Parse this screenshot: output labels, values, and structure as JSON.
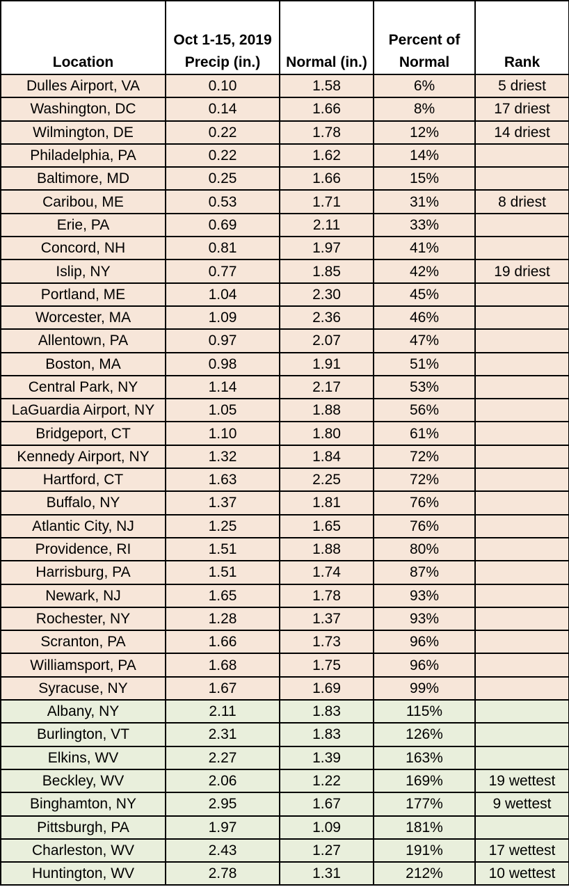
{
  "headers": [
    {
      "lines": [
        "Location"
      ]
    },
    {
      "lines": [
        "Oct 1-15, 2019",
        "Precip (in.)"
      ]
    },
    {
      "lines": [
        "Normal (in.)"
      ]
    },
    {
      "lines": [
        "Percent of",
        "Normal"
      ]
    },
    {
      "lines": [
        "Rank"
      ]
    }
  ],
  "colors": {
    "dry": "#f7e6d9",
    "wet": "#e9efdc",
    "border": "#000000"
  },
  "rows": [
    {
      "location": "Dulles Airport, VA",
      "precip": "0.10",
      "normal": "1.58",
      "percent": "6%",
      "rank": "5 driest",
      "group": "dry"
    },
    {
      "location": "Washington, DC",
      "precip": "0.14",
      "normal": "1.66",
      "percent": "8%",
      "rank": "17 driest",
      "group": "dry"
    },
    {
      "location": "Wilmington, DE",
      "precip": "0.22",
      "normal": "1.78",
      "percent": "12%",
      "rank": "14 driest",
      "group": "dry"
    },
    {
      "location": "Philadelphia, PA",
      "precip": "0.22",
      "normal": "1.62",
      "percent": "14%",
      "rank": "",
      "group": "dry"
    },
    {
      "location": "Baltimore, MD",
      "precip": "0.25",
      "normal": "1.66",
      "percent": "15%",
      "rank": "",
      "group": "dry"
    },
    {
      "location": "Caribou, ME",
      "precip": "0.53",
      "normal": "1.71",
      "percent": "31%",
      "rank": "8 driest",
      "group": "dry"
    },
    {
      "location": "Erie, PA",
      "precip": "0.69",
      "normal": "2.11",
      "percent": "33%",
      "rank": "",
      "group": "dry"
    },
    {
      "location": "Concord, NH",
      "precip": "0.81",
      "normal": "1.97",
      "percent": "41%",
      "rank": "",
      "group": "dry"
    },
    {
      "location": "Islip, NY",
      "precip": "0.77",
      "normal": "1.85",
      "percent": "42%",
      "rank": "19 driest",
      "group": "dry"
    },
    {
      "location": "Portland, ME",
      "precip": "1.04",
      "normal": "2.30",
      "percent": "45%",
      "rank": "",
      "group": "dry"
    },
    {
      "location": "Worcester, MA",
      "precip": "1.09",
      "normal": "2.36",
      "percent": "46%",
      "rank": "",
      "group": "dry"
    },
    {
      "location": "Allentown, PA",
      "precip": "0.97",
      "normal": "2.07",
      "percent": "47%",
      "rank": "",
      "group": "dry"
    },
    {
      "location": "Boston, MA",
      "precip": "0.98",
      "normal": "1.91",
      "percent": "51%",
      "rank": "",
      "group": "dry"
    },
    {
      "location": "Central Park, NY",
      "precip": "1.14",
      "normal": "2.17",
      "percent": "53%",
      "rank": "",
      "group": "dry"
    },
    {
      "location": "LaGuardia Airport, NY",
      "precip": "1.05",
      "normal": "1.88",
      "percent": "56%",
      "rank": "",
      "group": "dry"
    },
    {
      "location": "Bridgeport, CT",
      "precip": "1.10",
      "normal": "1.80",
      "percent": "61%",
      "rank": "",
      "group": "dry"
    },
    {
      "location": "Kennedy Airport, NY",
      "precip": "1.32",
      "normal": "1.84",
      "percent": "72%",
      "rank": "",
      "group": "dry"
    },
    {
      "location": "Hartford, CT",
      "precip": "1.63",
      "normal": "2.25",
      "percent": "72%",
      "rank": "",
      "group": "dry"
    },
    {
      "location": "Buffalo, NY",
      "precip": "1.37",
      "normal": "1.81",
      "percent": "76%",
      "rank": "",
      "group": "dry"
    },
    {
      "location": "Atlantic City, NJ",
      "precip": "1.25",
      "normal": "1.65",
      "percent": "76%",
      "rank": "",
      "group": "dry"
    },
    {
      "location": "Providence, RI",
      "precip": "1.51",
      "normal": "1.88",
      "percent": "80%",
      "rank": "",
      "group": "dry"
    },
    {
      "location": "Harrisburg, PA",
      "precip": "1.51",
      "normal": "1.74",
      "percent": "87%",
      "rank": "",
      "group": "dry"
    },
    {
      "location": "Newark, NJ",
      "precip": "1.65",
      "normal": "1.78",
      "percent": "93%",
      "rank": "",
      "group": "dry"
    },
    {
      "location": "Rochester, NY",
      "precip": "1.28",
      "normal": "1.37",
      "percent": "93%",
      "rank": "",
      "group": "dry"
    },
    {
      "location": "Scranton, PA",
      "precip": "1.66",
      "normal": "1.73",
      "percent": "96%",
      "rank": "",
      "group": "dry"
    },
    {
      "location": "Williamsport, PA",
      "precip": "1.68",
      "normal": "1.75",
      "percent": "96%",
      "rank": "",
      "group": "dry"
    },
    {
      "location": "Syracuse, NY",
      "precip": "1.67",
      "normal": "1.69",
      "percent": "99%",
      "rank": "",
      "group": "dry"
    },
    {
      "location": "Albany, NY",
      "precip": "2.11",
      "normal": "1.83",
      "percent": "115%",
      "rank": "",
      "group": "wet"
    },
    {
      "location": "Burlington, VT",
      "precip": "2.31",
      "normal": "1.83",
      "percent": "126%",
      "rank": "",
      "group": "wet"
    },
    {
      "location": "Elkins, WV",
      "precip": "2.27",
      "normal": "1.39",
      "percent": "163%",
      "rank": "",
      "group": "wet"
    },
    {
      "location": "Beckley, WV",
      "precip": "2.06",
      "normal": "1.22",
      "percent": "169%",
      "rank": "19 wettest",
      "group": "wet"
    },
    {
      "location": "Binghamton, NY",
      "precip": "2.95",
      "normal": "1.67",
      "percent": "177%",
      "rank": "9 wettest",
      "group": "wet"
    },
    {
      "location": "Pittsburgh, PA",
      "precip": "1.97",
      "normal": "1.09",
      "percent": "181%",
      "rank": "",
      "group": "wet"
    },
    {
      "location": "Charleston, WV",
      "precip": "2.43",
      "normal": "1.27",
      "percent": "191%",
      "rank": "17 wettest",
      "group": "wet"
    },
    {
      "location": "Huntington, WV",
      "precip": "2.78",
      "normal": "1.31",
      "percent": "212%",
      "rank": "10 wettest",
      "group": "wet"
    }
  ]
}
